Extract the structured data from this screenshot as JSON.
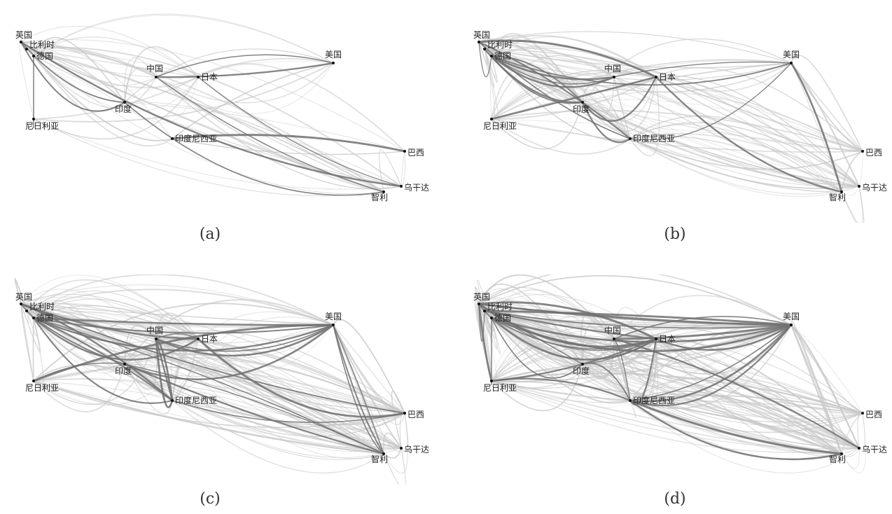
{
  "panels": [
    {
      "caption": "(a)",
      "density": 60,
      "dark": 10
    },
    {
      "caption": "(b)",
      "density": 110,
      "dark": 18
    },
    {
      "caption": "(c)",
      "density": 160,
      "dark": 28
    },
    {
      "caption": "(d)",
      "density": 200,
      "dark": 34
    }
  ],
  "nodes": [
    {
      "id": "uk",
      "label": "英国"
    },
    {
      "id": "be",
      "label": "比利时"
    },
    {
      "id": "de",
      "label": "德国"
    },
    {
      "id": "cn",
      "label": "中国"
    },
    {
      "id": "jp",
      "label": "日本"
    },
    {
      "id": "us",
      "label": "美国"
    },
    {
      "id": "in",
      "label": "印度"
    },
    {
      "id": "ng",
      "label": "尼日利亚"
    },
    {
      "id": "id",
      "label": "印度尼西亚"
    },
    {
      "id": "br",
      "label": "巴西"
    },
    {
      "id": "cl",
      "label": "智利"
    },
    {
      "id": "ug",
      "label": "乌干达"
    }
  ],
  "colors": {
    "light_edge": "#c8c8c8",
    "dark_edge": "#707070",
    "node": "#111111"
  }
}
